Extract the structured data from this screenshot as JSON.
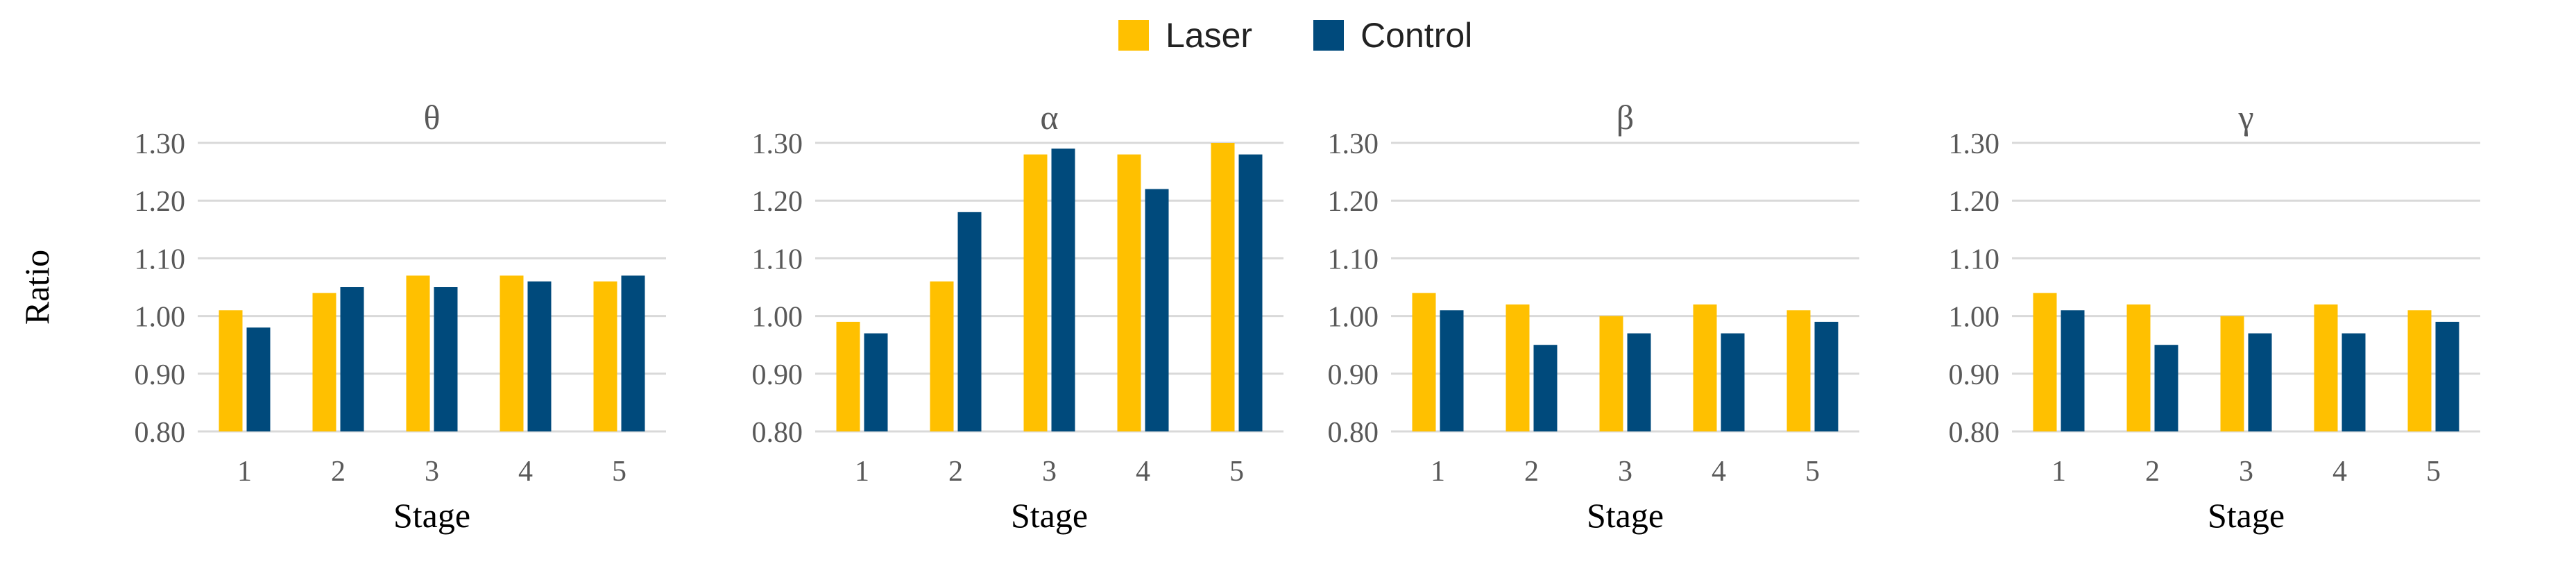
{
  "legend": [
    {
      "label": "Laser",
      "color": "#FFC000"
    },
    {
      "label": "Control",
      "color": "#004A7C"
    }
  ],
  "chart_data": [
    {
      "type": "bar",
      "title": "θ",
      "xlabel": "Stage",
      "ylabel": "Ratio",
      "categories": [
        "1",
        "2",
        "3",
        "4",
        "5"
      ],
      "ylim": [
        0.8,
        1.3
      ],
      "yticks": [
        "0.80",
        "0.90",
        "1.00",
        "1.10",
        "1.20",
        "1.30"
      ],
      "grid": true,
      "series": [
        {
          "name": "Laser",
          "color": "#FFC000",
          "values": [
            1.01,
            1.04,
            1.07,
            1.07,
            1.06
          ]
        },
        {
          "name": "Control",
          "color": "#004A7C",
          "values": [
            0.98,
            1.05,
            1.05,
            1.06,
            1.07
          ]
        }
      ]
    },
    {
      "type": "bar",
      "title": "α",
      "xlabel": "Stage",
      "ylabel": "",
      "categories": [
        "1",
        "2",
        "3",
        "4",
        "5"
      ],
      "ylim": [
        0.8,
        1.3
      ],
      "yticks": [
        "0.80",
        "0.90",
        "1.00",
        "1.10",
        "1.20",
        "1.30"
      ],
      "grid": true,
      "series": [
        {
          "name": "Laser",
          "color": "#FFC000",
          "values": [
            0.99,
            1.06,
            1.28,
            1.28,
            1.3
          ]
        },
        {
          "name": "Control",
          "color": "#004A7C",
          "values": [
            0.97,
            1.18,
            1.29,
            1.22,
            1.28
          ]
        }
      ]
    },
    {
      "type": "bar",
      "title": "β",
      "xlabel": "Stage",
      "ylabel": "",
      "categories": [
        "1",
        "2",
        "3",
        "4",
        "5"
      ],
      "ylim": [
        0.8,
        1.3
      ],
      "yticks": [
        "0.80",
        "0.90",
        "1.00",
        "1.10",
        "1.20",
        "1.30"
      ],
      "grid": true,
      "series": [
        {
          "name": "Laser",
          "color": "#FFC000",
          "values": [
            1.04,
            1.02,
            1.0,
            1.02,
            1.01
          ]
        },
        {
          "name": "Control",
          "color": "#004A7C",
          "values": [
            1.01,
            0.95,
            0.97,
            0.97,
            0.99
          ]
        }
      ]
    },
    {
      "type": "bar",
      "title": "γ",
      "xlabel": "Stage",
      "ylabel": "",
      "categories": [
        "1",
        "2",
        "3",
        "4",
        "5"
      ],
      "ylim": [
        0.8,
        1.3
      ],
      "yticks": [
        "0.80",
        "0.90",
        "1.00",
        "1.10",
        "1.20",
        "1.30"
      ],
      "grid": true,
      "series": [
        {
          "name": "Laser",
          "color": "#FFC000",
          "values": [
            1.04,
            1.02,
            1.0,
            1.02,
            1.01
          ]
        },
        {
          "name": "Control",
          "color": "#004A7C",
          "values": [
            1.01,
            0.95,
            0.97,
            0.97,
            0.99
          ]
        }
      ]
    }
  ]
}
